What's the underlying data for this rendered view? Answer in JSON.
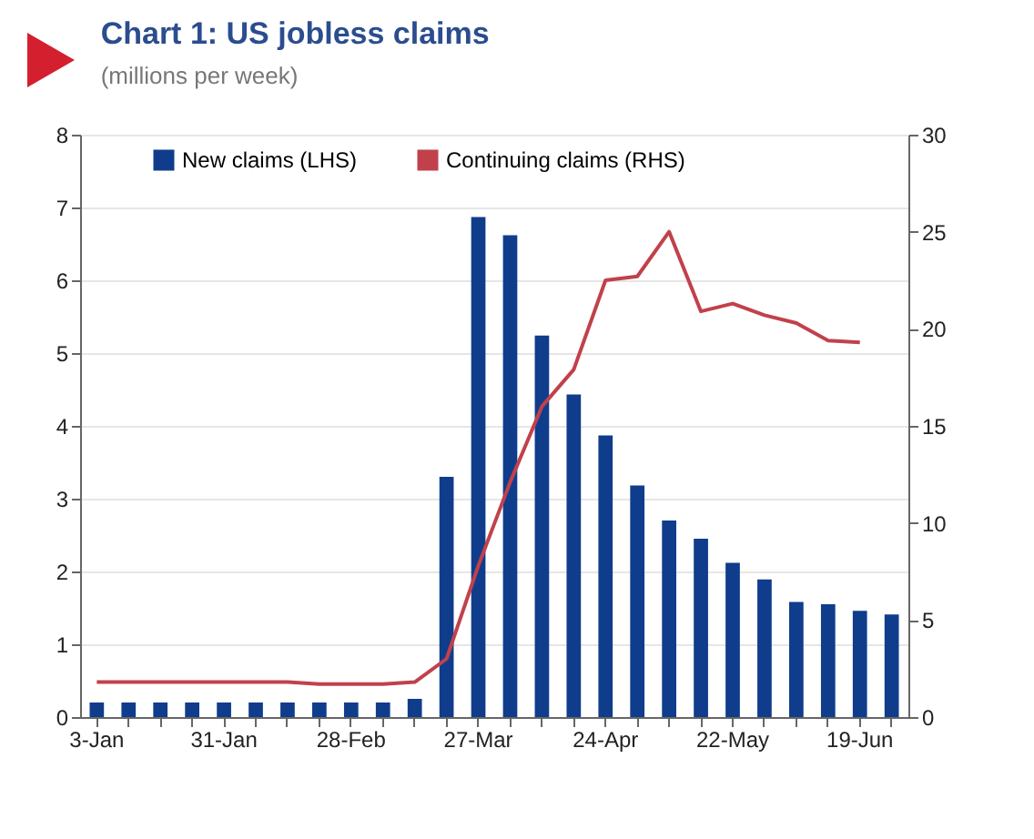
{
  "chart_data": {
    "type": "bar",
    "title": "Chart 1: US jobless claims",
    "subtitle": "(millions per week)",
    "categories": [
      "3-Jan",
      null,
      null,
      null,
      "31-Jan",
      null,
      null,
      null,
      "28-Feb",
      null,
      null,
      null,
      "27-Mar",
      null,
      null,
      null,
      "24-Apr",
      null,
      null,
      null,
      "22-May",
      null,
      null,
      null,
      "19-Jun",
      null
    ],
    "series": [
      {
        "name": "New claims (LHS)",
        "color": "#0f3d8c",
        "values": [
          0.2,
          0.2,
          0.2,
          0.2,
          0.2,
          0.2,
          0.2,
          0.2,
          0.2,
          0.2,
          0.25,
          3.3,
          6.87,
          6.62,
          5.24,
          4.43,
          3.87,
          3.18,
          2.7,
          2.45,
          2.12,
          1.89,
          1.58,
          1.55,
          1.46,
          1.41
        ]
      },
      {
        "name": "Continuing claims (RHS)",
        "type": "line",
        "axis": "y2",
        "color": "#c1414b",
        "values": [
          1.8,
          1.8,
          1.8,
          1.8,
          1.8,
          1.8,
          1.8,
          1.7,
          1.7,
          1.7,
          1.8,
          3.0,
          7.8,
          12.1,
          16.0,
          17.9,
          22.5,
          22.7,
          25.0,
          20.9,
          21.3,
          20.7,
          20.3,
          19.4,
          19.3,
          null
        ]
      }
    ],
    "ylim": [
      0,
      8
    ],
    "yticks": [
      0,
      1,
      2,
      3,
      4,
      5,
      6,
      7,
      8
    ],
    "y2lim": [
      0,
      30
    ],
    "y2ticks": [
      0,
      5,
      10,
      15,
      20,
      25,
      30
    ],
    "grid": "y",
    "legend": "top"
  }
}
